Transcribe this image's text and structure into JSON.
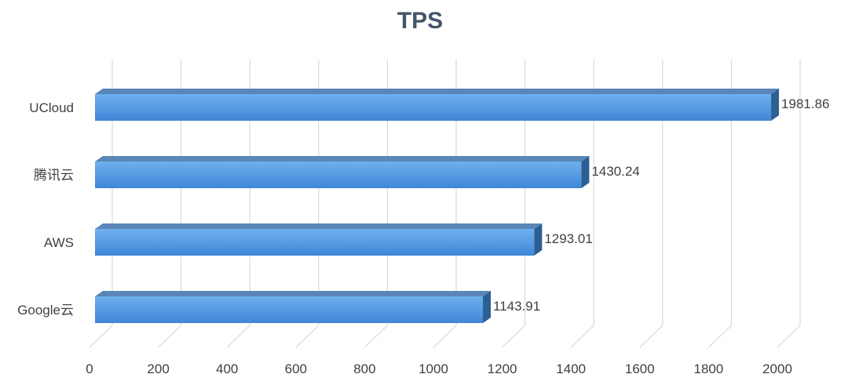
{
  "chart_data": {
    "type": "bar",
    "orientation": "horizontal",
    "style": "3d",
    "title": "TPS",
    "categories": [
      "UCloud",
      "腾讯云",
      "AWS",
      "Google云"
    ],
    "values": [
      1981.86,
      1430.24,
      1293.01,
      1143.91
    ],
    "value_labels": [
      "1981.86",
      "1430.24",
      "1293.01",
      "1143.91"
    ],
    "xlim": [
      0,
      2000
    ],
    "xticks": [
      "0",
      "200",
      "400",
      "600",
      "800",
      "1000",
      "1200",
      "1400",
      "1600",
      "1800",
      "2000"
    ],
    "grid": true,
    "legend": "none",
    "colors": {
      "bar_front_light": "#6fb0ef",
      "bar_front_dark": "#3f86d6",
      "bar_top": "#5a86b8",
      "bar_side": "#2c5f92",
      "grid": "#d9d9d9",
      "title": "#44546a",
      "text": "#404040"
    }
  }
}
